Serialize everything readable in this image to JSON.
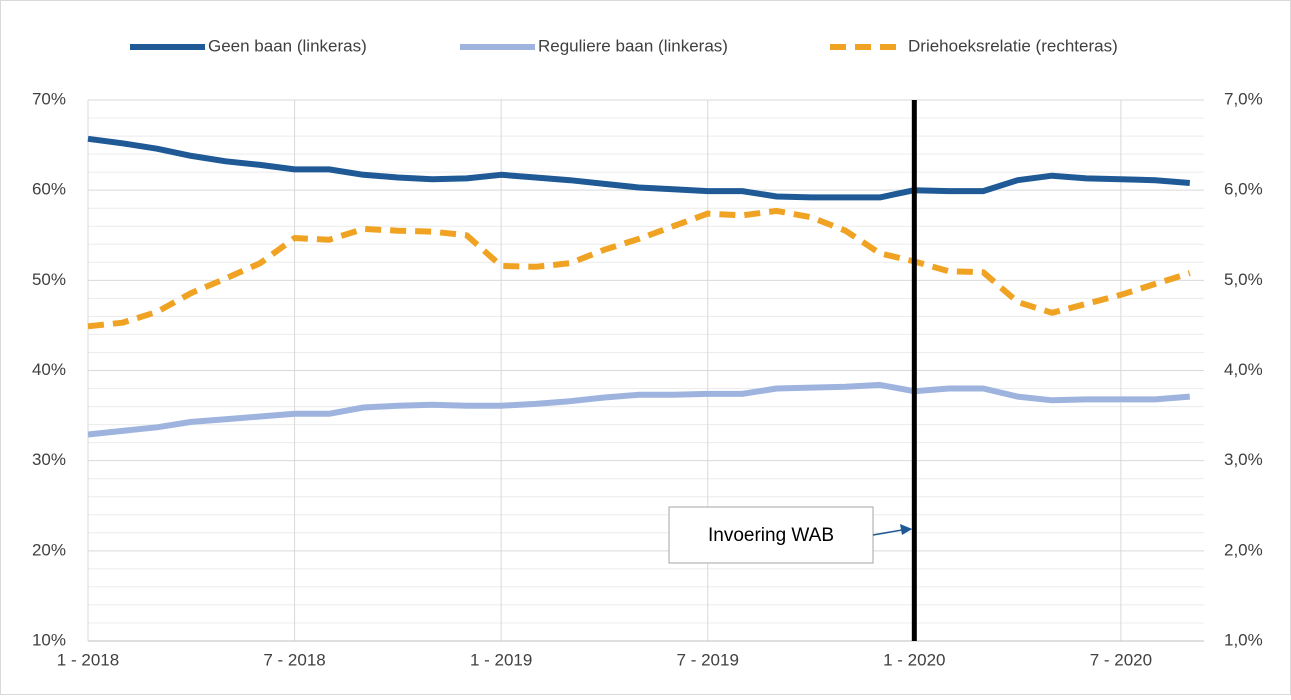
{
  "chart_data": {
    "type": "line",
    "categories": [
      "1 - 2018",
      null,
      null,
      null,
      null,
      null,
      "7 - 2018",
      null,
      null,
      null,
      null,
      null,
      "1 - 2019",
      null,
      null,
      null,
      null,
      null,
      "7 - 2019",
      null,
      null,
      null,
      null,
      null,
      "1 - 2020",
      null,
      null,
      null,
      null,
      null,
      "7 - 2020",
      null,
      null
    ],
    "series": [
      {
        "name": "Geen baan (linkeras)",
        "color": "#1f5a96",
        "dash": false,
        "axis": "y",
        "values": [
          65.7,
          65.2,
          64.6,
          63.8,
          63.2,
          62.8,
          62.3,
          62.3,
          61.7,
          61.4,
          61.2,
          61.3,
          61.7,
          61.4,
          61.1,
          60.7,
          60.3,
          60.1,
          59.9,
          59.9,
          59.3,
          59.2,
          59.2,
          59.2,
          60.0,
          59.9,
          59.9,
          61.1,
          61.6,
          61.3,
          61.2,
          61.1,
          60.8
        ]
      },
      {
        "name": "Reguliere baan (linkeras)",
        "color": "#9eb4de",
        "dash": false,
        "axis": "y",
        "values": [
          32.9,
          33.3,
          33.7,
          34.3,
          34.6,
          34.9,
          35.2,
          35.2,
          35.9,
          36.1,
          36.2,
          36.1,
          36.1,
          36.3,
          36.6,
          37.0,
          37.3,
          37.3,
          37.4,
          37.4,
          38.0,
          38.1,
          38.2,
          38.4,
          37.7,
          38.0,
          38.0,
          37.1,
          36.7,
          36.8,
          36.8,
          36.8,
          37.1
        ]
      },
      {
        "name": "Driehoeksrelatie (rechteras)",
        "color": "#f0a323",
        "dash": true,
        "axis": "y2",
        "values": [
          4.49,
          4.53,
          4.65,
          4.86,
          5.02,
          5.19,
          5.47,
          5.45,
          5.57,
          5.55,
          5.54,
          5.5,
          5.16,
          5.15,
          5.19,
          5.34,
          5.46,
          5.6,
          5.74,
          5.72,
          5.77,
          5.7,
          5.55,
          5.3,
          5.21,
          5.1,
          5.09,
          4.76,
          4.64,
          4.74,
          4.84,
          4.96,
          5.08
        ]
      }
    ],
    "ylim": [
      10,
      70
    ],
    "yticks": [
      {
        "value": 10,
        "label": "10%"
      },
      {
        "value": 20,
        "label": "20%"
      },
      {
        "value": 30,
        "label": "30%"
      },
      {
        "value": 40,
        "label": "40%"
      },
      {
        "value": 50,
        "label": "50%"
      },
      {
        "value": 60,
        "label": "60%"
      },
      {
        "value": 70,
        "label": "70%"
      }
    ],
    "yminorticks": [
      12,
      14,
      16,
      18,
      22,
      24,
      26,
      28,
      32,
      34,
      36,
      38,
      42,
      44,
      46,
      48,
      52,
      54,
      56,
      58,
      62,
      64,
      66,
      68
    ],
    "y2lim": [
      1,
      7
    ],
    "y2ticks": [
      {
        "value": 1,
        "label": "1,0%"
      },
      {
        "value": 2,
        "label": "2,0%"
      },
      {
        "value": 3,
        "label": "3,0%"
      },
      {
        "value": 4,
        "label": "4,0%"
      },
      {
        "value": 5,
        "label": "5,0%"
      },
      {
        "value": 6,
        "label": "6,0%"
      },
      {
        "value": 7,
        "label": "7,0%"
      }
    ],
    "grid": true,
    "legend": "top",
    "annotation": {
      "text": "Invoering WAB",
      "at": "1 - 2020"
    }
  }
}
